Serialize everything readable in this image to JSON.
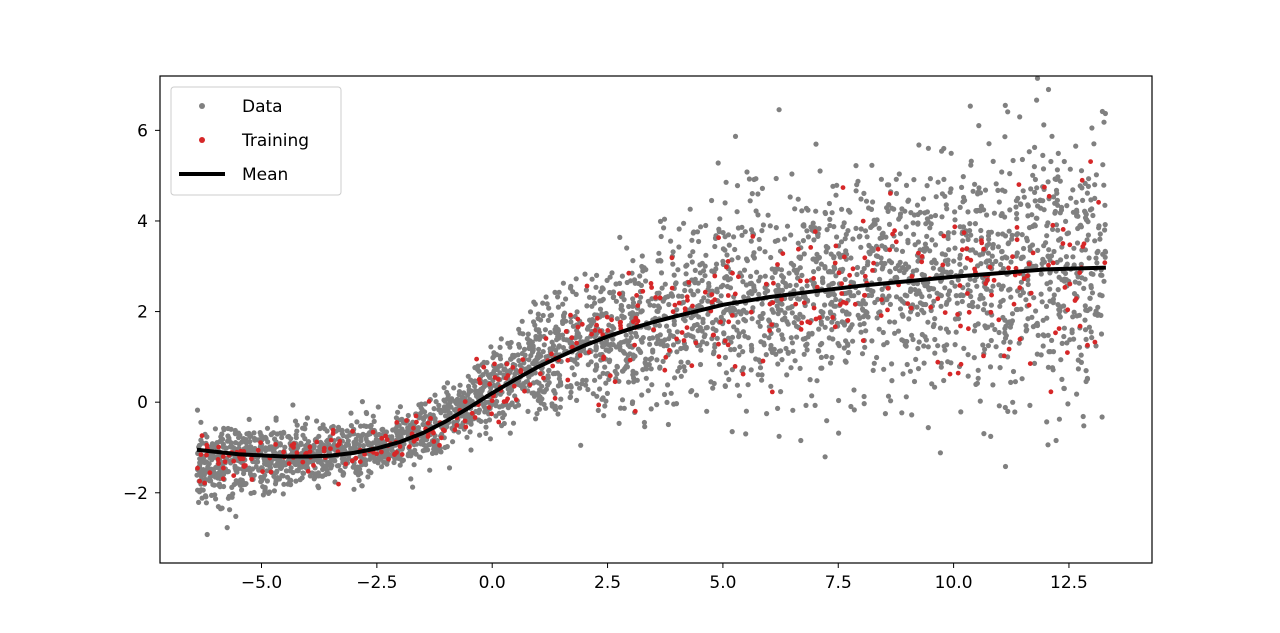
{
  "chart_data": {
    "type": "scatter",
    "title": "",
    "xlabel": "",
    "ylabel": "",
    "xlim": [
      -7.2,
      14.3
    ],
    "ylim": [
      -3.55,
      7.2
    ],
    "x_ticks": [
      -5.0,
      -2.5,
      0.0,
      2.5,
      5.0,
      7.5,
      10.0,
      12.5
    ],
    "x_tick_labels": [
      "−5.0",
      "−2.5",
      "0.0",
      "2.5",
      "5.0",
      "7.5",
      "10.0",
      "12.5"
    ],
    "y_ticks": [
      -2,
      0,
      2,
      4,
      6
    ],
    "y_tick_labels": [
      "−2",
      "0",
      "2",
      "4",
      "6"
    ],
    "grid": false,
    "legend": {
      "position": "upper-left",
      "entries": [
        {
          "label": "Data",
          "marker": "dot",
          "color": "#808080"
        },
        {
          "label": "Training",
          "marker": "dot",
          "color": "#d62728"
        },
        {
          "label": "Mean",
          "marker": "line",
          "color": "#000000"
        }
      ]
    },
    "series": [
      {
        "name": "Data",
        "kind": "scatter",
        "color": "#808080",
        "x_range": [
          -6.4,
          13.3
        ],
        "trend": [
          [
            -6.4,
            -1.4
          ],
          [
            -4.0,
            -1.2
          ],
          [
            -2.0,
            -0.9
          ],
          [
            -1.0,
            -0.5
          ],
          [
            0.0,
            0.3
          ],
          [
            1.0,
            0.9
          ],
          [
            2.5,
            1.4
          ],
          [
            5.0,
            2.2
          ],
          [
            7.5,
            2.6
          ],
          [
            10.0,
            2.8
          ],
          [
            12.0,
            3.0
          ],
          [
            13.3,
            3.0
          ]
        ],
        "spread_sd": [
          [
            -6.4,
            0.45
          ],
          [
            -2.0,
            0.3
          ],
          [
            0.0,
            0.45
          ],
          [
            2.5,
            0.8
          ],
          [
            5.0,
            1.0
          ],
          [
            10.0,
            1.3
          ],
          [
            13.3,
            1.6
          ]
        ],
        "approx_point_count": 3500
      },
      {
        "name": "Training",
        "kind": "scatter",
        "color": "#d62728",
        "x_range": [
          -6.4,
          13.3
        ],
        "trend": [
          [
            -6.4,
            -1.3
          ],
          [
            -4.0,
            -1.1
          ],
          [
            -2.0,
            -0.8
          ],
          [
            -1.0,
            -0.5
          ],
          [
            0.0,
            0.1
          ],
          [
            1.0,
            0.7
          ],
          [
            2.5,
            1.4
          ],
          [
            5.0,
            2.1
          ],
          [
            7.5,
            2.5
          ],
          [
            10.0,
            2.6
          ],
          [
            12.0,
            2.8
          ],
          [
            13.3,
            3.0
          ]
        ],
        "approx_point_count": 420
      },
      {
        "name": "Mean",
        "kind": "line",
        "color": "#000000",
        "x": [
          -6.4,
          -5.5,
          -4.5,
          -4.0,
          -3.5,
          -3.0,
          -2.5,
          -2.0,
          -1.5,
          -1.0,
          -0.5,
          0.0,
          0.5,
          1.0,
          1.5,
          2.0,
          2.5,
          3.0,
          3.5,
          4.0,
          5.0,
          6.0,
          7.0,
          8.0,
          9.0,
          10.0,
          11.0,
          12.0,
          13.3
        ],
        "y": [
          -1.05,
          -1.15,
          -1.2,
          -1.2,
          -1.18,
          -1.12,
          -1.02,
          -0.88,
          -0.68,
          -0.42,
          -0.12,
          0.2,
          0.5,
          0.78,
          1.02,
          1.25,
          1.45,
          1.62,
          1.77,
          1.9,
          2.15,
          2.32,
          2.45,
          2.57,
          2.67,
          2.77,
          2.85,
          2.93,
          2.97
        ]
      }
    ]
  }
}
